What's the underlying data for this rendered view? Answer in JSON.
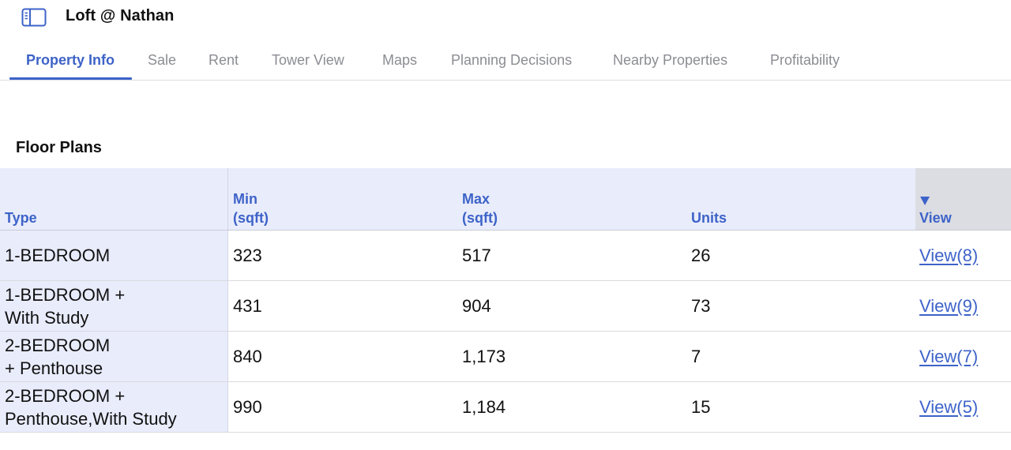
{
  "header": {
    "sidebar_icon": "sidebar-toggle-icon",
    "title": "Loft @ Nathan"
  },
  "tabs": [
    {
      "label": "Property Info",
      "active": true
    },
    {
      "label": "Sale",
      "active": false
    },
    {
      "label": "Rent",
      "active": false
    },
    {
      "label": "Tower View",
      "active": false
    },
    {
      "label": "Maps",
      "active": false
    },
    {
      "label": "Planning Decisions",
      "active": false
    },
    {
      "label": "Nearby Properties",
      "active": false
    },
    {
      "label": "Profitability",
      "active": false
    }
  ],
  "floor_plans": {
    "title": "Floor Plans",
    "columns": {
      "type": "Type",
      "min_line1": "Min",
      "min_line2": "(sqft)",
      "max_line1": "Max",
      "max_line2": "(sqft)",
      "units": "Units",
      "view": "View",
      "sort_icon": "sort-descending-icon"
    },
    "rows": [
      {
        "type_line1": "1-BEDROOM",
        "type_line2": "",
        "min": "323",
        "max": "517",
        "units": "26",
        "view": "View(8)"
      },
      {
        "type_line1": "1-BEDROOM +",
        "type_line2": "With Study",
        "min": "431",
        "max": "904",
        "units": "73",
        "view": "View(9)"
      },
      {
        "type_line1": "2-BEDROOM",
        "type_line2": "+ Penthouse",
        "min": "840",
        "max": "1,173",
        "units": "7",
        "view": "View(7)"
      },
      {
        "type_line1": "2-BEDROOM +",
        "type_line2": "Penthouse,With Study",
        "min": "990",
        "max": "1,184",
        "units": "15",
        "view": "View(5)"
      }
    ]
  },
  "colors": {
    "accent": "#3d63c8",
    "inactive_tab": "#8c8d93",
    "header_row_bg": "#e9ecfb",
    "sorted_column_bg": "#dcdde3"
  }
}
